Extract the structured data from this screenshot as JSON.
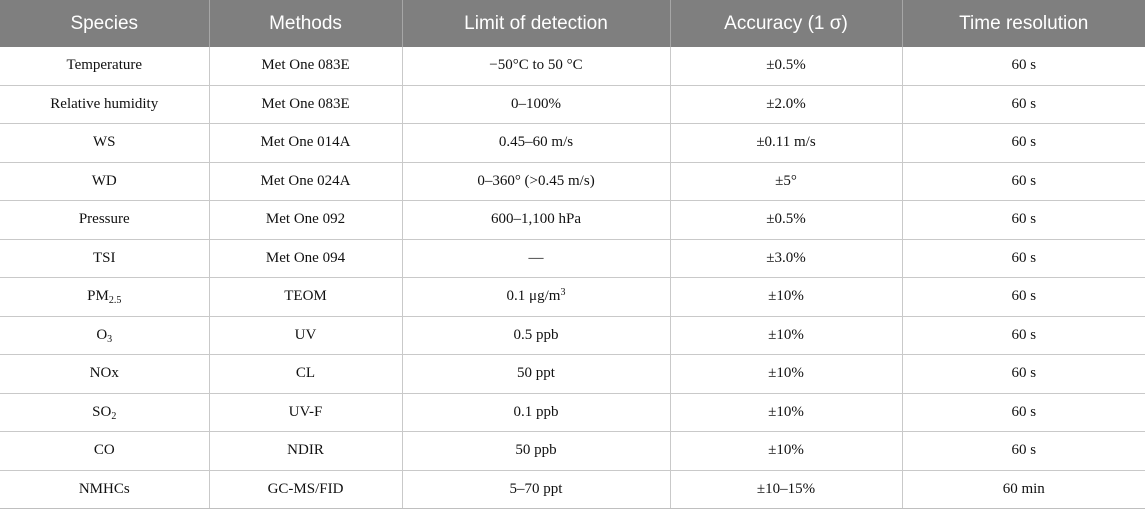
{
  "table": {
    "headers": [
      "Species",
      "Methods",
      "Limit of detection",
      "Accuracy (1 σ)",
      "Time resolution"
    ],
    "rows": [
      {
        "species": "Temperature",
        "species_sub": "",
        "species_end": "",
        "method": "Met One 083E",
        "lod": "−50°C to 50 °C",
        "lod_sup": "",
        "accuracy": "±0.5%",
        "time": "60 s"
      },
      {
        "species": "Relative humidity",
        "species_sub": "",
        "species_end": "",
        "method": "Met One 083E",
        "lod": "0–100%",
        "lod_sup": "",
        "accuracy": "±2.0%",
        "time": "60 s"
      },
      {
        "species": "WS",
        "species_sub": "",
        "species_end": "",
        "method": "Met One 014A",
        "lod": "0.45–60 m/s",
        "lod_sup": "",
        "accuracy": "±0.11 m/s",
        "time": "60 s"
      },
      {
        "species": "WD",
        "species_sub": "",
        "species_end": "",
        "method": "Met One 024A",
        "lod": "0–360° (>0.45 m/s)",
        "lod_sup": "",
        "accuracy": "±5°",
        "time": "60 s"
      },
      {
        "species": "Pressure",
        "species_sub": "",
        "species_end": "",
        "method": "Met One 092",
        "lod": "600–1,100 hPa",
        "lod_sup": "",
        "accuracy": "±0.5%",
        "time": "60 s"
      },
      {
        "species": "TSI",
        "species_sub": "",
        "species_end": "",
        "method": "Met One 094",
        "lod": "—",
        "lod_sup": "",
        "accuracy": "±3.0%",
        "time": "60 s"
      },
      {
        "species": "PM",
        "species_sub": "2.5",
        "species_end": "",
        "method": "TEOM",
        "lod": "0.1 μg/m",
        "lod_sup": "3",
        "accuracy": "±10%",
        "time": "60 s"
      },
      {
        "species": "O",
        "species_sub": "3",
        "species_end": "",
        "method": "UV",
        "lod": "0.5 ppb",
        "lod_sup": "",
        "accuracy": "±10%",
        "time": "60 s"
      },
      {
        "species": "NOx",
        "species_sub": "",
        "species_end": "",
        "method": "CL",
        "lod": "50 ppt",
        "lod_sup": "",
        "accuracy": "±10%",
        "time": "60 s"
      },
      {
        "species": "SO",
        "species_sub": "2",
        "species_end": "",
        "method": "UV-F",
        "lod": "0.1 ppb",
        "lod_sup": "",
        "accuracy": "±10%",
        "time": "60 s"
      },
      {
        "species": "CO",
        "species_sub": "",
        "species_end": "",
        "method": "NDIR",
        "lod": "50 ppb",
        "lod_sup": "",
        "accuracy": "±10%",
        "time": "60 s"
      },
      {
        "species": "NMHCs",
        "species_sub": "",
        "species_end": "",
        "method": "GC-MS/FID",
        "lod": "5–70 ppt",
        "lod_sup": "",
        "accuracy": "±10–15%",
        "time": "60 min"
      }
    ]
  }
}
